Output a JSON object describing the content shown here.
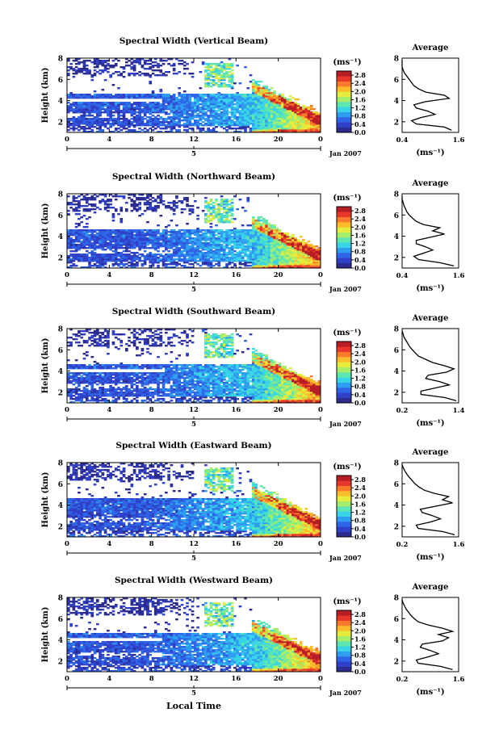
{
  "figure": {
    "month_label": "Jan 2007",
    "bottom_xlabel": "Local Time",
    "date_marker": "5"
  },
  "colorbar": {
    "unit_label": "(ms⁻¹)",
    "ticks": [
      "2.8",
      "2.4",
      "2.0",
      "1.6",
      "1.2",
      "0.8",
      "0.4",
      "0.0"
    ],
    "range": [
      0.0,
      3.0
    ],
    "colors": [
      "#2b2c8e",
      "#3040c8",
      "#2f66e8",
      "#2f9ef0",
      "#38d4e8",
      "#5de6b0",
      "#a6ee6a",
      "#e6ec3c",
      "#fbbc2c",
      "#f87a2a",
      "#e8362a",
      "#b81c24"
    ]
  },
  "chart_data": [
    {
      "type": "heatmap",
      "title": "Spectral Width (Vertical Beam)",
      "ylabel": "Height (km)",
      "xlim": [
        0,
        24
      ],
      "x_ticks": [
        "0",
        "4",
        "8",
        "12",
        "16",
        "20",
        "0"
      ],
      "ylim": [
        1,
        8
      ],
      "y_ticks": [
        "2",
        "4",
        "6",
        "8"
      ],
      "z_range": [
        0.0,
        3.0
      ],
      "profile": {
        "title": "Average",
        "xlabel": "(ms⁻¹)",
        "xlim": [
          0.4,
          1.6
        ],
        "x_ticks": [
          "0.4",
          "1.6"
        ],
        "ylim": [
          1,
          8
        ],
        "y_ticks": [
          "2",
          "4",
          "6",
          "8"
        ],
        "points": [
          [
            1.45,
            1.2
          ],
          [
            1.3,
            1.5
          ],
          [
            0.7,
            1.8
          ],
          [
            0.6,
            2.1
          ],
          [
            0.8,
            2.4
          ],
          [
            1.1,
            2.7
          ],
          [
            0.95,
            3.0
          ],
          [
            0.7,
            3.3
          ],
          [
            0.65,
            3.6
          ],
          [
            0.9,
            3.9
          ],
          [
            1.4,
            4.2
          ],
          [
            1.3,
            4.5
          ],
          [
            0.9,
            4.8
          ],
          [
            0.75,
            5.1
          ],
          [
            0.65,
            5.4
          ],
          [
            0.6,
            5.7
          ],
          [
            0.55,
            6.0
          ],
          [
            0.5,
            6.3
          ],
          [
            0.45,
            6.6
          ],
          [
            0.42,
            6.9
          ],
          [
            0.4,
            7.2
          ],
          [
            0.4,
            7.5
          ],
          [
            0.4,
            7.8
          ]
        ]
      }
    },
    {
      "type": "heatmap",
      "title": "Spectral Width (Northward Beam)",
      "ylabel": "Height (km)",
      "xlim": [
        0,
        24
      ],
      "x_ticks": [
        "0",
        "4",
        "8",
        "12",
        "16",
        "20",
        "0"
      ],
      "ylim": [
        1,
        8
      ],
      "y_ticks": [
        "2",
        "4",
        "6",
        "8"
      ],
      "z_range": [
        0.0,
        3.0
      ],
      "profile": {
        "title": "Average",
        "xlabel": "(ms⁻¹)",
        "xlim": [
          0.4,
          1.6
        ],
        "x_ticks": [
          "0.4",
          "1.6"
        ],
        "ylim": [
          1,
          8
        ],
        "y_ticks": [
          "2",
          "4",
          "6",
          "8"
        ],
        "points": [
          [
            1.5,
            1.2
          ],
          [
            1.2,
            1.5
          ],
          [
            0.75,
            1.8
          ],
          [
            0.65,
            2.1
          ],
          [
            0.85,
            2.4
          ],
          [
            1.05,
            2.7
          ],
          [
            0.9,
            3.0
          ],
          [
            0.7,
            3.3
          ],
          [
            0.7,
            3.6
          ],
          [
            1.0,
            3.9
          ],
          [
            1.3,
            4.2
          ],
          [
            1.05,
            4.5
          ],
          [
            1.2,
            4.8
          ],
          [
            0.85,
            5.1
          ],
          [
            0.7,
            5.4
          ],
          [
            0.62,
            5.7
          ],
          [
            0.55,
            6.0
          ],
          [
            0.5,
            6.3
          ],
          [
            0.47,
            6.6
          ],
          [
            0.44,
            6.9
          ],
          [
            0.42,
            7.2
          ],
          [
            0.4,
            7.5
          ],
          [
            0.4,
            7.8
          ]
        ]
      }
    },
    {
      "type": "heatmap",
      "title": "Spectral Width (Southward Beam)",
      "ylabel": "Height (km)",
      "xlim": [
        0,
        24
      ],
      "x_ticks": [
        "0",
        "4",
        "8",
        "12",
        "16",
        "20",
        "0"
      ],
      "ylim": [
        1,
        8
      ],
      "y_ticks": [
        "2",
        "4",
        "6",
        "8"
      ],
      "z_range": [
        0.0,
        3.0
      ],
      "profile": {
        "title": "Average",
        "xlabel": "(ms⁻¹)",
        "xlim": [
          0.2,
          1.4
        ],
        "x_ticks": [
          "0.2",
          "1.4"
        ],
        "ylim": [
          1,
          8
        ],
        "y_ticks": [
          "2",
          "4",
          "6",
          "8"
        ],
        "points": [
          [
            1.35,
            1.2
          ],
          [
            1.1,
            1.5
          ],
          [
            0.6,
            1.8
          ],
          [
            0.6,
            2.1
          ],
          [
            0.9,
            2.4
          ],
          [
            1.2,
            2.7
          ],
          [
            1.0,
            3.0
          ],
          [
            0.7,
            3.3
          ],
          [
            0.75,
            3.6
          ],
          [
            1.15,
            3.9
          ],
          [
            1.3,
            4.2
          ],
          [
            1.1,
            4.5
          ],
          [
            0.85,
            4.8
          ],
          [
            0.7,
            5.1
          ],
          [
            0.55,
            5.4
          ],
          [
            0.48,
            5.7
          ],
          [
            0.42,
            6.0
          ],
          [
            0.36,
            6.3
          ],
          [
            0.32,
            6.6
          ],
          [
            0.28,
            6.9
          ],
          [
            0.24,
            7.2
          ],
          [
            0.22,
            7.5
          ],
          [
            0.2,
            7.8
          ]
        ]
      }
    },
    {
      "type": "heatmap",
      "title": "Spectral Width (Eastward Beam)",
      "ylabel": "Height (km)",
      "xlim": [
        0,
        24
      ],
      "x_ticks": [
        "0",
        "4",
        "8",
        "12",
        "16",
        "20",
        "0"
      ],
      "ylim": [
        1,
        8
      ],
      "y_ticks": [
        "2",
        "4",
        "6",
        "8"
      ],
      "z_range": [
        0.0,
        3.0
      ],
      "profile": {
        "title": "Average",
        "xlabel": "(ms⁻¹)",
        "xlim": [
          0.2,
          1.6
        ],
        "x_ticks": [
          "0.2",
          "1.6"
        ],
        "ylim": [
          1,
          8
        ],
        "y_ticks": [
          "2",
          "4",
          "6",
          "8"
        ],
        "points": [
          [
            1.5,
            1.2
          ],
          [
            1.2,
            1.5
          ],
          [
            0.6,
            1.8
          ],
          [
            0.55,
            2.1
          ],
          [
            0.9,
            2.4
          ],
          [
            1.15,
            2.7
          ],
          [
            0.95,
            3.0
          ],
          [
            0.7,
            3.3
          ],
          [
            0.65,
            3.6
          ],
          [
            1.05,
            3.9
          ],
          [
            1.45,
            4.2
          ],
          [
            1.2,
            4.5
          ],
          [
            1.35,
            4.8
          ],
          [
            1.0,
            5.1
          ],
          [
            0.75,
            5.4
          ],
          [
            0.62,
            5.7
          ],
          [
            0.52,
            6.0
          ],
          [
            0.45,
            6.3
          ],
          [
            0.38,
            6.6
          ],
          [
            0.32,
            6.9
          ],
          [
            0.27,
            7.2
          ],
          [
            0.23,
            7.5
          ],
          [
            0.2,
            7.8
          ]
        ]
      }
    },
    {
      "type": "heatmap",
      "title": "Spectral Width (Westward Beam)",
      "ylabel": "Height (km)",
      "xlim": [
        0,
        24
      ],
      "x_ticks": [
        "0",
        "4",
        "8",
        "12",
        "16",
        "20",
        "0"
      ],
      "ylim": [
        1,
        8
      ],
      "y_ticks": [
        "2",
        "4",
        "6",
        "8"
      ],
      "z_range": [
        0.0,
        3.0
      ],
      "profile": {
        "title": "Average",
        "xlabel": "(ms⁻¹)",
        "xlim": [
          0.2,
          1.6
        ],
        "x_ticks": [
          "0.2",
          "1.6"
        ],
        "ylim": [
          1,
          8
        ],
        "y_ticks": [
          "2",
          "4",
          "6",
          "8"
        ],
        "points": [
          [
            1.45,
            1.2
          ],
          [
            1.15,
            1.5
          ],
          [
            0.6,
            1.8
          ],
          [
            0.55,
            2.1
          ],
          [
            0.85,
            2.4
          ],
          [
            1.1,
            2.7
          ],
          [
            0.9,
            3.0
          ],
          [
            0.65,
            3.3
          ],
          [
            0.7,
            3.6
          ],
          [
            1.2,
            3.9
          ],
          [
            1.35,
            4.2
          ],
          [
            1.1,
            4.5
          ],
          [
            1.45,
            4.8
          ],
          [
            1.2,
            5.1
          ],
          [
            0.85,
            5.4
          ],
          [
            0.6,
            5.7
          ],
          [
            0.5,
            6.0
          ],
          [
            0.42,
            6.3
          ],
          [
            0.36,
            6.6
          ],
          [
            0.3,
            6.9
          ],
          [
            0.26,
            7.2
          ],
          [
            0.22,
            7.5
          ],
          [
            0.2,
            7.8
          ]
        ]
      }
    }
  ]
}
